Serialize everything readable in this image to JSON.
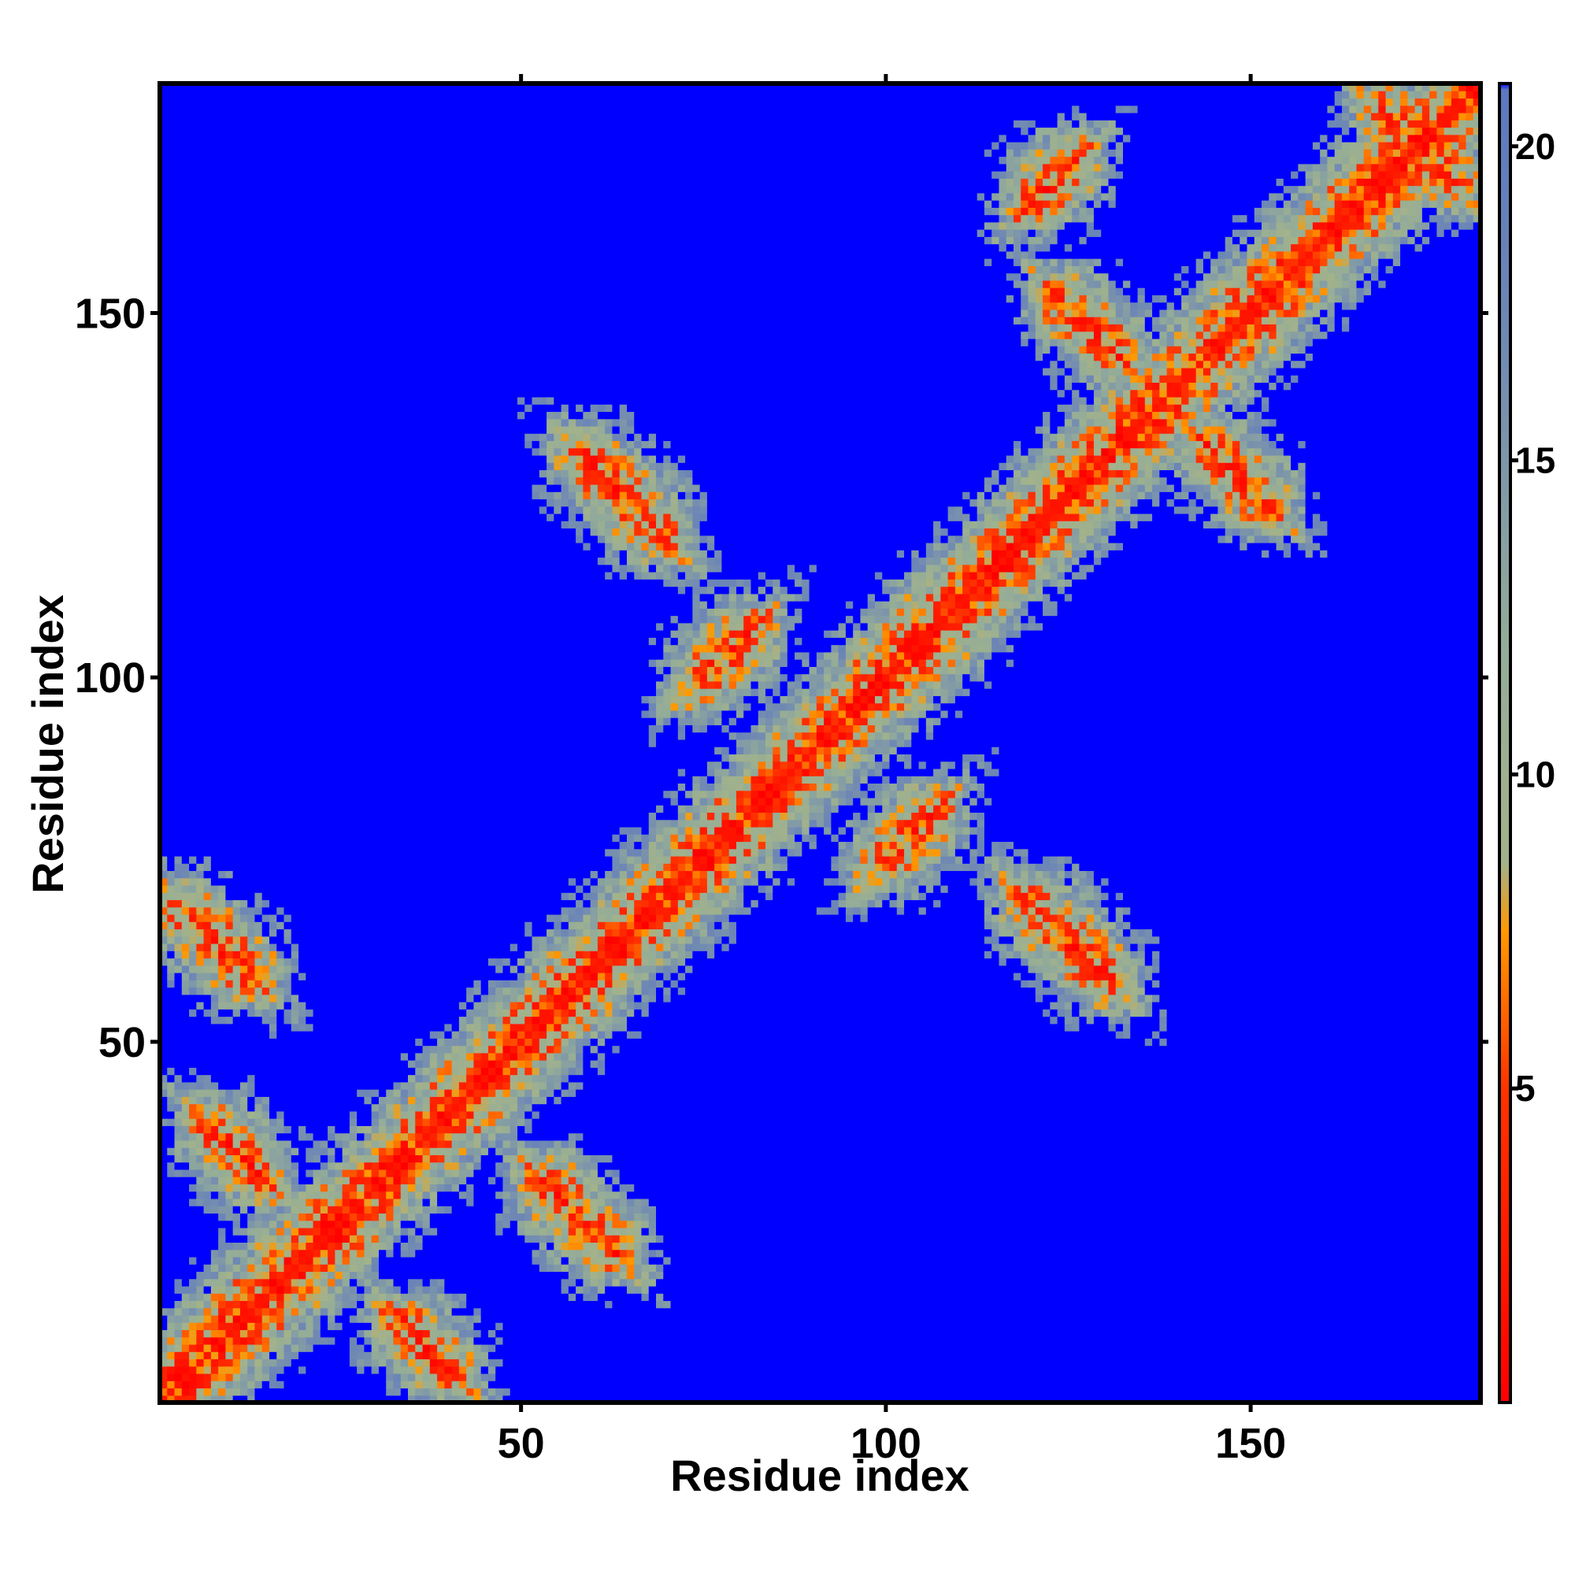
{
  "chart_data": {
    "type": "heatmap",
    "title": "",
    "xlabel": "Residue index",
    "ylabel": "Residue index",
    "xlim": [
      1,
      181
    ],
    "ylim": [
      1,
      181
    ],
    "x_ticks": [
      50,
      100,
      150
    ],
    "y_ticks": [
      50,
      100,
      150
    ],
    "colorbar": {
      "range": [
        0,
        21
      ],
      "ticks": [
        5,
        10,
        15,
        20
      ],
      "stops": [
        {
          "value": 0,
          "color": "#ff0000"
        },
        {
          "value": 5,
          "color": "#ff3300"
        },
        {
          "value": 7.5,
          "color": "#ff9900"
        },
        {
          "value": 8.6,
          "color": "#a3b28a"
        },
        {
          "value": 12,
          "color": "#94ac98"
        },
        {
          "value": 17,
          "color": "#6f88b4"
        },
        {
          "value": 20.9,
          "color": "#5c78c0"
        },
        {
          "value": 21,
          "color": "#0000ff"
        }
      ]
    },
    "description_values": {
      "metric": "pairwise residue distance",
      "diagonal_value": 0,
      "far_value": 21,
      "contact_bands": [
        {
          "cx": 58,
          "cy": 26,
          "len": 14,
          "dir": "anti"
        },
        {
          "cx": 37,
          "cy": 8,
          "len": 10,
          "dir": "anti"
        },
        {
          "cx": 11,
          "cy": 35,
          "len": 10,
          "dir": "anti"
        },
        {
          "cx": 8,
          "cy": 64,
          "len": 14,
          "dir": "anti"
        },
        {
          "cx": 64,
          "cy": 125,
          "len": 16,
          "dir": "anti"
        },
        {
          "cx": 125,
          "cy": 64,
          "len": 16,
          "dir": "anti"
        },
        {
          "cx": 128,
          "cy": 148,
          "len": 12,
          "dir": "anti"
        },
        {
          "cx": 148,
          "cy": 128,
          "len": 12,
          "dir": "anti"
        },
        {
          "cx": 173,
          "cy": 173,
          "len": 14,
          "dir": "anti"
        },
        {
          "cx": 78,
          "cy": 103,
          "len": 10,
          "dir": "par"
        },
        {
          "cx": 103,
          "cy": 78,
          "len": 10,
          "dir": "par"
        },
        {
          "cx": 123,
          "cy": 168,
          "len": 8,
          "dir": "par"
        }
      ]
    }
  }
}
